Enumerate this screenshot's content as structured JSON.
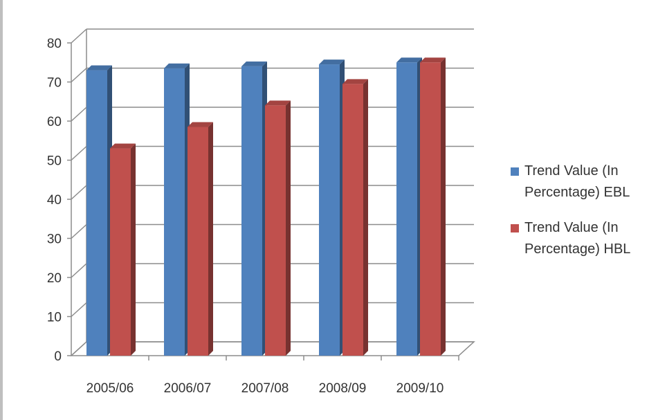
{
  "chart_data": {
    "type": "bar",
    "categories": [
      "2005/06",
      "2006/07",
      "2007/08",
      "2008/09",
      "2009/10"
    ],
    "series": [
      {
        "name": "Trend Value (In Percentage) EBL",
        "values": [
          73,
          73.5,
          74,
          74.5,
          75
        ],
        "color": "#4f81bd"
      },
      {
        "name": "Trend Value (In Percentage) HBL",
        "values": [
          53,
          58.5,
          64,
          69.5,
          75
        ],
        "color": "#c0504d"
      }
    ],
    "title": "",
    "xlabel": "",
    "ylabel": "",
    "ylim": [
      0,
      80
    ],
    "yticks": [
      0,
      10,
      20,
      30,
      40,
      50,
      60,
      70,
      80
    ],
    "grid": true,
    "legend_position": "right",
    "style": "3d-clustered-column"
  }
}
